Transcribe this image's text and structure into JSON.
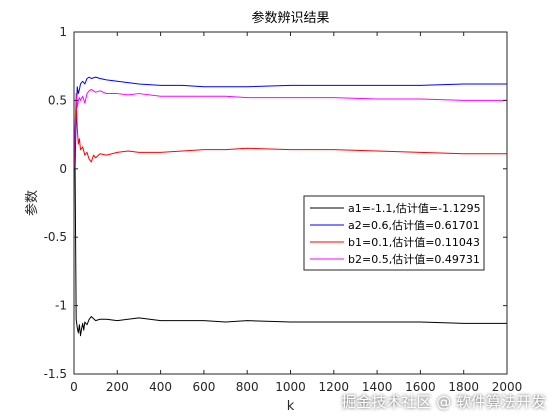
{
  "chart_data": {
    "type": "line",
    "title": "参数辨识结果",
    "xlabel": "k",
    "ylabel": "参数",
    "xlim": [
      0,
      2000
    ],
    "ylim": [
      -1.5,
      1
    ],
    "xticks": [
      "0",
      "200",
      "400",
      "600",
      "800",
      "1000",
      "1200",
      "1400",
      "1600",
      "1800",
      "2000"
    ],
    "yticks": [
      "-1.5",
      "-1",
      "-0.5",
      "0",
      "0.5",
      "1"
    ],
    "grid": false,
    "legend_position": "right-middle",
    "series": [
      {
        "name": "a1=-1.1,估计值=-1.1295",
        "color": "#000000",
        "x": [
          0,
          5,
          10,
          15,
          20,
          25,
          30,
          35,
          40,
          45,
          50,
          60,
          70,
          80,
          100,
          120,
          150,
          200,
          250,
          300,
          400,
          500,
          600,
          700,
          800,
          1000,
          1200,
          1400,
          1600,
          1800,
          2000
        ],
        "y": [
          0,
          0,
          -1.1,
          -1.16,
          -1.2,
          -1.14,
          -1.22,
          -1.17,
          -1.13,
          -1.18,
          -1.12,
          -1.14,
          -1.1,
          -1.08,
          -1.11,
          -1.1,
          -1.1,
          -1.11,
          -1.1,
          -1.09,
          -1.11,
          -1.11,
          -1.11,
          -1.12,
          -1.11,
          -1.12,
          -1.12,
          -1.12,
          -1.12,
          -1.13,
          -1.13
        ]
      },
      {
        "name": "a2=0.6,估计值=0.61701",
        "color": "#0000ff",
        "x": [
          0,
          5,
          10,
          15,
          20,
          25,
          30,
          40,
          50,
          60,
          70,
          80,
          100,
          120,
          150,
          200,
          250,
          300,
          400,
          500,
          600,
          700,
          800,
          1000,
          1200,
          1400,
          1600,
          1800,
          2000
        ],
        "y": [
          0,
          0,
          0.4,
          0.6,
          0.55,
          0.58,
          0.62,
          0.64,
          0.62,
          0.66,
          0.67,
          0.66,
          0.67,
          0.66,
          0.65,
          0.64,
          0.63,
          0.62,
          0.61,
          0.61,
          0.6,
          0.6,
          0.6,
          0.61,
          0.61,
          0.61,
          0.61,
          0.62,
          0.62
        ]
      },
      {
        "name": "b1=0.1,估计值=0.11043",
        "color": "#ff0000",
        "x": [
          0,
          5,
          10,
          15,
          20,
          25,
          30,
          40,
          50,
          60,
          70,
          80,
          90,
          100,
          120,
          150,
          200,
          250,
          300,
          400,
          500,
          600,
          700,
          800,
          1000,
          1200,
          1400,
          1600,
          1800,
          2000
        ],
        "y": [
          0,
          0.2,
          0.5,
          0.3,
          0.18,
          0.22,
          0.14,
          0.16,
          0.1,
          0.12,
          0.07,
          0.05,
          0.1,
          0.08,
          0.11,
          0.1,
          0.12,
          0.13,
          0.12,
          0.12,
          0.13,
          0.14,
          0.14,
          0.15,
          0.14,
          0.14,
          0.13,
          0.12,
          0.11,
          0.11
        ]
      },
      {
        "name": "b2=0.5,估计值=0.49731",
        "color": "#ff00ff",
        "x": [
          0,
          5,
          10,
          15,
          20,
          25,
          30,
          40,
          50,
          60,
          70,
          80,
          100,
          120,
          150,
          200,
          250,
          300,
          400,
          500,
          600,
          700,
          800,
          1000,
          1200,
          1400,
          1600,
          1800,
          2000
        ],
        "y": [
          0,
          0.3,
          0.55,
          0.45,
          0.5,
          0.52,
          0.5,
          0.53,
          0.48,
          0.55,
          0.57,
          0.58,
          0.56,
          0.57,
          0.55,
          0.55,
          0.54,
          0.55,
          0.53,
          0.53,
          0.53,
          0.53,
          0.52,
          0.52,
          0.52,
          0.51,
          0.51,
          0.5,
          0.5
        ]
      }
    ]
  },
  "watermark": "掘金技术社区 @ 软件算法开发"
}
